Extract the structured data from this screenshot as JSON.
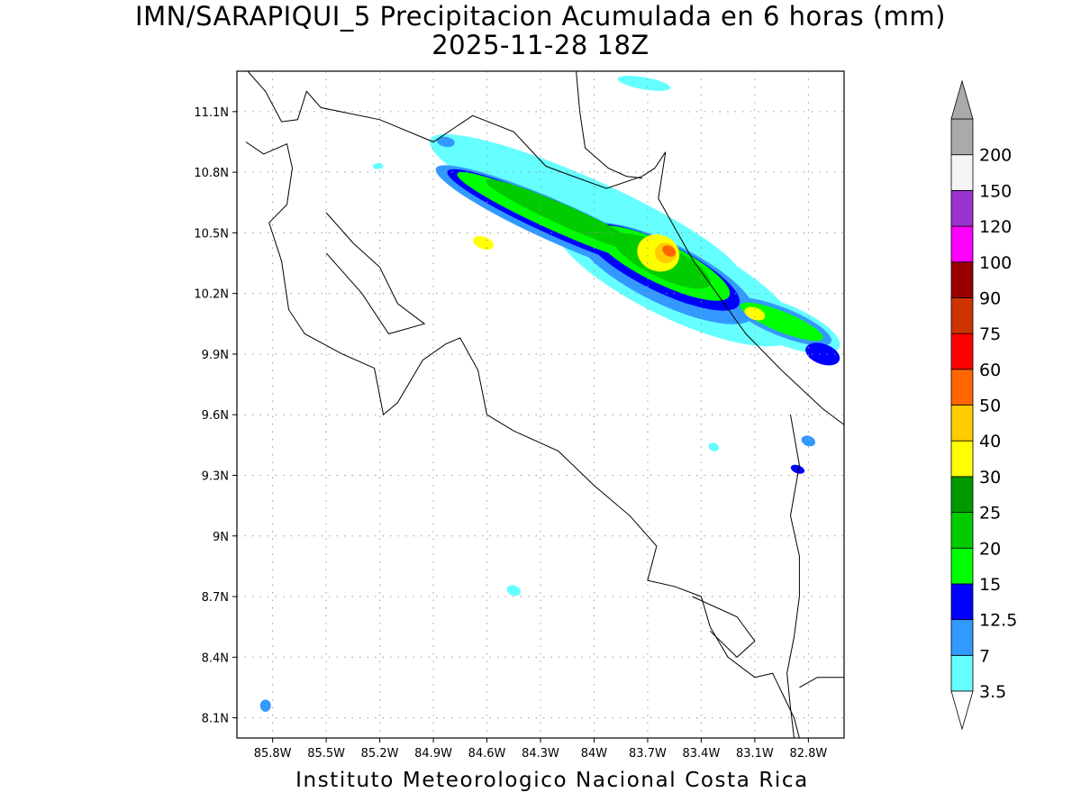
{
  "title": {
    "line1": "IMN/SARAPIQUI_5 Precipitacion Acumulada en 6 horas (mm)",
    "line2": "2025-11-28 18Z"
  },
  "footer": "Instituto Meteorologico Nacional Costa Rica",
  "map": {
    "lon_range": [
      -86.0,
      -82.6
    ],
    "lat_range": [
      8.0,
      11.3
    ],
    "x_ticks": [
      {
        "value": -85.8,
        "label": "85.8W"
      },
      {
        "value": -85.5,
        "label": "85.5W"
      },
      {
        "value": -85.2,
        "label": "85.2W"
      },
      {
        "value": -84.9,
        "label": "84.9W"
      },
      {
        "value": -84.6,
        "label": "84.6W"
      },
      {
        "value": -84.3,
        "label": "84.3W"
      },
      {
        "value": -84.0,
        "label": "84W"
      },
      {
        "value": -83.7,
        "label": "83.7W"
      },
      {
        "value": -83.4,
        "label": "83.4W"
      },
      {
        "value": -83.1,
        "label": "83.1W"
      },
      {
        "value": -82.8,
        "label": "82.8W"
      }
    ],
    "y_ticks": [
      {
        "value": 11.1,
        "label": "11.1N"
      },
      {
        "value": 10.8,
        "label": "10.8N"
      },
      {
        "value": 10.5,
        "label": "10.5N"
      },
      {
        "value": 10.2,
        "label": "10.2N"
      },
      {
        "value": 9.9,
        "label": "9.9N"
      },
      {
        "value": 9.6,
        "label": "9.6N"
      },
      {
        "value": 9.3,
        "label": "9.3N"
      },
      {
        "value": 9.0,
        "label": "9N"
      },
      {
        "value": 8.7,
        "label": "8.7N"
      },
      {
        "value": 8.4,
        "label": "8.4N"
      },
      {
        "value": 8.1,
        "label": "8.1N"
      }
    ],
    "grid": true
  },
  "legend": {
    "levels": [
      {
        "label": "3.5",
        "color": "#66ffff"
      },
      {
        "label": "7",
        "color": "#3399ff"
      },
      {
        "label": "12.5",
        "color": "#0000ff"
      },
      {
        "label": "15",
        "color": "#00ff00"
      },
      {
        "label": "20",
        "color": "#00cc00"
      },
      {
        "label": "25",
        "color": "#009900"
      },
      {
        "label": "30",
        "color": "#ffff00"
      },
      {
        "label": "40",
        "color": "#ffcc00"
      },
      {
        "label": "50",
        "color": "#ff6600"
      },
      {
        "label": "60",
        "color": "#ff0000"
      },
      {
        "label": "75",
        "color": "#cc3300"
      },
      {
        "label": "90",
        "color": "#990000"
      },
      {
        "label": "100",
        "color": "#ff00ff"
      },
      {
        "label": "120",
        "color": "#9933cc"
      },
      {
        "label": "150",
        "color": "#f5f5f5"
      },
      {
        "label": "200",
        "color": "#aaaaaa"
      }
    ]
  },
  "precipitation_cells": [
    {
      "lon": -84.05,
      "lat": 10.62,
      "rx_deg": 0.95,
      "ry_deg": 0.15,
      "angle": 24,
      "level": 0
    },
    {
      "lon": -83.55,
      "lat": 10.28,
      "rx_deg": 0.75,
      "ry_deg": 0.2,
      "angle": 26,
      "level": 0
    },
    {
      "lon": -82.95,
      "lat": 10.05,
      "rx_deg": 0.35,
      "ry_deg": 0.1,
      "angle": 22,
      "level": 0
    },
    {
      "lon": -84.2,
      "lat": 10.55,
      "rx_deg": 0.75,
      "ry_deg": 0.1,
      "angle": 24,
      "level": 1
    },
    {
      "lon": -83.6,
      "lat": 10.3,
      "rx_deg": 0.55,
      "ry_deg": 0.15,
      "angle": 26,
      "level": 1
    },
    {
      "lon": -82.95,
      "lat": 10.06,
      "rx_deg": 0.3,
      "ry_deg": 0.07,
      "angle": 22,
      "level": 1
    },
    {
      "lon": -84.2,
      "lat": 10.56,
      "rx_deg": 0.68,
      "ry_deg": 0.08,
      "angle": 24,
      "level": 2
    },
    {
      "lon": -83.62,
      "lat": 10.33,
      "rx_deg": 0.48,
      "ry_deg": 0.12,
      "angle": 26,
      "level": 2
    },
    {
      "lon": -84.2,
      "lat": 10.57,
      "rx_deg": 0.62,
      "ry_deg": 0.065,
      "angle": 24,
      "level": 3
    },
    {
      "lon": -83.62,
      "lat": 10.35,
      "rx_deg": 0.42,
      "ry_deg": 0.1,
      "angle": 26,
      "level": 3
    },
    {
      "lon": -82.95,
      "lat": 10.06,
      "rx_deg": 0.25,
      "ry_deg": 0.05,
      "angle": 22,
      "level": 3
    },
    {
      "lon": -84.15,
      "lat": 10.58,
      "rx_deg": 0.5,
      "ry_deg": 0.05,
      "angle": 24,
      "level": 4
    },
    {
      "lon": -83.62,
      "lat": 10.36,
      "rx_deg": 0.3,
      "ry_deg": 0.08,
      "angle": 26,
      "level": 4
    },
    {
      "lon": -83.64,
      "lat": 10.4,
      "rx_deg": 0.12,
      "ry_deg": 0.09,
      "angle": 20,
      "level": 6
    },
    {
      "lon": -84.62,
      "lat": 10.45,
      "rx_deg": 0.06,
      "ry_deg": 0.03,
      "angle": 20,
      "level": 6
    },
    {
      "lon": -83.6,
      "lat": 10.4,
      "rx_deg": 0.06,
      "ry_deg": 0.05,
      "angle": 20,
      "level": 7
    },
    {
      "lon": -83.58,
      "lat": 10.41,
      "rx_deg": 0.04,
      "ry_deg": 0.025,
      "angle": 30,
      "level": 8
    },
    {
      "lon": -84.45,
      "lat": 8.73,
      "rx_deg": 0.04,
      "ry_deg": 0.025,
      "angle": 20,
      "level": 0
    },
    {
      "lon": -85.84,
      "lat": 8.16,
      "rx_deg": 0.03,
      "ry_deg": 0.03,
      "angle": 0,
      "level": 1
    },
    {
      "lon": -82.86,
      "lat": 9.33,
      "rx_deg": 0.04,
      "ry_deg": 0.02,
      "angle": 20,
      "level": 2
    },
    {
      "lon": -82.8,
      "lat": 9.47,
      "rx_deg": 0.04,
      "ry_deg": 0.025,
      "angle": 20,
      "level": 1
    },
    {
      "lon": -83.33,
      "lat": 9.44,
      "rx_deg": 0.03,
      "ry_deg": 0.02,
      "angle": 20,
      "level": 0
    },
    {
      "lon": -84.83,
      "lat": 10.95,
      "rx_deg": 0.05,
      "ry_deg": 0.025,
      "angle": 10,
      "level": 1
    },
    {
      "lon": -85.21,
      "lat": 10.83,
      "rx_deg": 0.03,
      "ry_deg": 0.015,
      "angle": 0,
      "level": 0
    },
    {
      "lon": -83.72,
      "lat": 11.24,
      "rx_deg": 0.15,
      "ry_deg": 0.03,
      "angle": 10,
      "level": 0
    },
    {
      "lon": -82.72,
      "lat": 9.9,
      "rx_deg": 0.1,
      "ry_deg": 0.05,
      "angle": 20,
      "level": 2
    },
    {
      "lon": -83.1,
      "lat": 10.1,
      "rx_deg": 0.06,
      "ry_deg": 0.03,
      "angle": 20,
      "level": 6
    }
  ],
  "borders": [
    [
      [
        -85.94,
        11.3
      ],
      [
        -85.84,
        11.2
      ],
      [
        -85.75,
        11.05
      ],
      [
        -85.66,
        11.06
      ],
      [
        -85.61,
        11.2
      ],
      [
        -85.53,
        11.12
      ],
      [
        -85.2,
        11.06
      ],
      [
        -84.9,
        10.95
      ],
      [
        -84.68,
        11.08
      ],
      [
        -84.45,
        11.0
      ],
      [
        -84.27,
        10.83
      ],
      [
        -84.18,
        10.8
      ],
      [
        -83.93,
        10.72
      ],
      [
        -83.73,
        10.78
      ],
      [
        -83.66,
        10.82
      ],
      [
        -83.6,
        10.9
      ],
      [
        -83.64,
        10.67
      ],
      [
        -83.45,
        10.37
      ],
      [
        -83.15,
        10.0
      ],
      [
        -82.95,
        9.82
      ],
      [
        -82.72,
        9.63
      ],
      [
        -82.6,
        9.55
      ]
    ],
    [
      [
        -84.1,
        11.3
      ],
      [
        -84.08,
        11.1
      ],
      [
        -84.05,
        10.92
      ],
      [
        -83.92,
        10.82
      ],
      [
        -83.82,
        10.78
      ],
      [
        -83.73,
        10.77
      ]
    ],
    [
      [
        -85.95,
        10.95
      ],
      [
        -85.85,
        10.89
      ],
      [
        -85.72,
        10.94
      ],
      [
        -85.69,
        10.82
      ],
      [
        -85.72,
        10.64
      ],
      [
        -85.82,
        10.55
      ],
      [
        -85.75,
        10.36
      ],
      [
        -85.71,
        10.12
      ],
      [
        -85.62,
        10.0
      ],
      [
        -85.41,
        9.9
      ],
      [
        -85.23,
        9.83
      ],
      [
        -85.18,
        9.6
      ],
      [
        -85.1,
        9.66
      ],
      [
        -84.96,
        9.87
      ],
      [
        -84.83,
        9.95
      ],
      [
        -84.75,
        9.98
      ],
      [
        -84.65,
        9.82
      ],
      [
        -84.6,
        9.6
      ],
      [
        -84.45,
        9.52
      ],
      [
        -84.2,
        9.42
      ],
      [
        -84.0,
        9.25
      ],
      [
        -83.8,
        9.1
      ],
      [
        -83.65,
        8.95
      ],
      [
        -83.7,
        8.78
      ],
      [
        -83.55,
        8.75
      ],
      [
        -83.4,
        8.7
      ],
      [
        -83.35,
        8.55
      ],
      [
        -83.25,
        8.4
      ],
      [
        -83.1,
        8.3
      ],
      [
        -83.0,
        8.32
      ],
      [
        -82.88,
        8.1
      ],
      [
        -82.85,
        8.0
      ]
    ],
    [
      [
        -85.5,
        10.6
      ],
      [
        -85.35,
        10.45
      ],
      [
        -85.2,
        10.33
      ],
      [
        -85.1,
        10.15
      ],
      [
        -84.95,
        10.05
      ],
      [
        -85.15,
        10.0
      ],
      [
        -85.3,
        10.2
      ],
      [
        -85.5,
        10.4
      ]
    ],
    [
      [
        -83.45,
        8.7
      ],
      [
        -83.2,
        8.6
      ],
      [
        -83.1,
        8.48
      ],
      [
        -83.2,
        8.4
      ],
      [
        -83.35,
        8.53
      ]
    ],
    [
      [
        -82.9,
        9.6
      ],
      [
        -82.85,
        9.35
      ],
      [
        -82.9,
        9.1
      ],
      [
        -82.85,
        8.9
      ],
      [
        -82.85,
        8.7
      ],
      [
        -82.88,
        8.5
      ],
      [
        -82.92,
        8.32
      ],
      [
        -82.9,
        8.15
      ],
      [
        -82.88,
        8.0
      ]
    ],
    [
      [
        -82.6,
        8.3
      ],
      [
        -82.75,
        8.3
      ],
      [
        -82.85,
        8.25
      ]
    ]
  ]
}
